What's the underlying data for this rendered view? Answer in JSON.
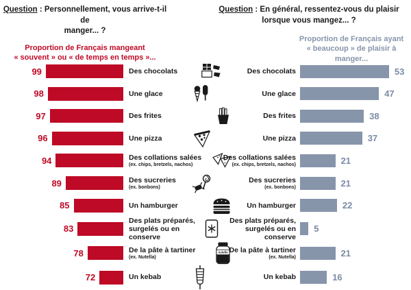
{
  "header": {
    "left_question": {
      "label": "Question",
      "rest": " : Personnellement, vous arrive-t-il de",
      "line2": "manger... ?"
    },
    "right_question": {
      "label": "Question",
      "rest": " : En général, ressentez-vous du plaisir",
      "line2": "lorsque vous mangez... ?"
    },
    "left_subtitle": {
      "line1": "Proportion de Français mangeant",
      "line2": "« souvent » ou « de temps en temps »..."
    },
    "right_subtitle": {
      "line1": "Proportion de Français ayant",
      "line2": "« beaucoup » de plaisir à manger..."
    }
  },
  "colors": {
    "left_bar": "#BE0A26",
    "right_bar": "#8795AB",
    "right_value_text": "#7A8BA5",
    "text": "#1A1A1A"
  },
  "chart_data": {
    "type": "bar",
    "orientation": "horizontal",
    "categories": [
      "Des chocolats",
      "Une glace",
      "Des frites",
      "Une pizza",
      "Des collations salées",
      "Des sucreries",
      "Un hamburger",
      "Des plats préparés, surgelés ou en conserve",
      "De la pâte à tartiner",
      "Un kebab"
    ],
    "sublabels": [
      "",
      "",
      "",
      "",
      "(ex. chips, bretzels, nachos)",
      "(ex. bonbons)",
      "",
      "",
      "(ex. Nutella)",
      ""
    ],
    "series": [
      {
        "name": "Proportion de Français mangeant « souvent » ou « de temps en temps »",
        "color": "#BE0A26",
        "values": [
          99,
          98,
          97,
          96,
          94,
          89,
          85,
          83,
          78,
          72
        ]
      },
      {
        "name": "Proportion de Français ayant « beaucoup » de plaisir à manger",
        "color": "#8795AB",
        "values": [
          53,
          47,
          38,
          37,
          21,
          21,
          22,
          5,
          21,
          16
        ]
      }
    ],
    "icons": [
      "chocolate-icon",
      "ice-cream-icon",
      "fries-icon",
      "pizza-icon",
      "nachos-icon",
      "candy-icon",
      "hamburger-icon",
      "frozen-food-icon",
      "nutella-icon",
      "kebab-icon"
    ],
    "xlim_left": [
      60,
      100
    ],
    "xlim_right": [
      0,
      60
    ],
    "grid": false,
    "legend_position": "none"
  }
}
